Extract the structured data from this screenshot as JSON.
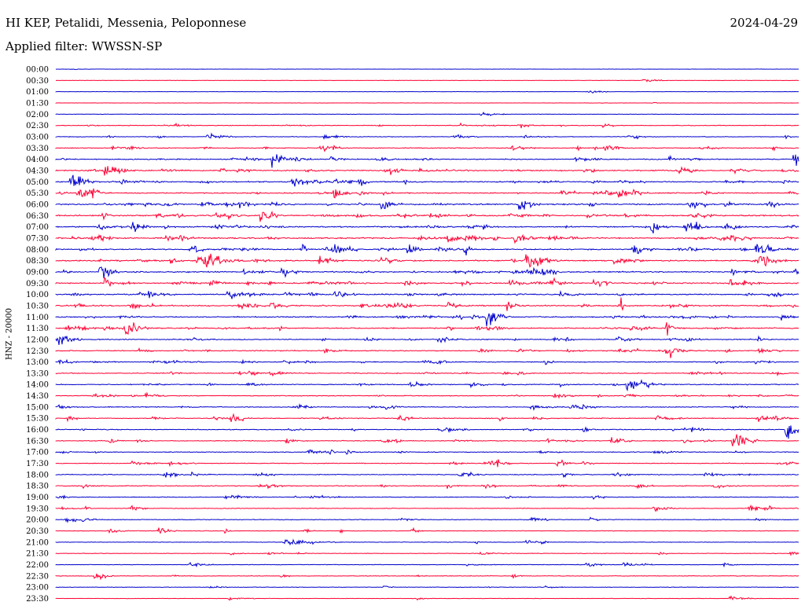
{
  "header": {
    "station": "HI KEP, Petalidi, Messenia, Peloponnese",
    "date": "2024-04-29",
    "filter": "Applied filter: WWSSN-SP"
  },
  "chart_data": {
    "type": "line",
    "ylabel": "HNZ - 20000",
    "row_labels": [
      "00:00",
      "00:30",
      "01:00",
      "01:30",
      "02:00",
      "02:30",
      "03:00",
      "03:30",
      "04:00",
      "04:30",
      "05:00",
      "05:30",
      "06:00",
      "06:30",
      "07:00",
      "07:30",
      "08:00",
      "08:30",
      "09:00",
      "09:30",
      "10:00",
      "10:30",
      "11:00",
      "11:30",
      "12:00",
      "12:30",
      "13:00",
      "13:30",
      "14:00",
      "14:30",
      "15:00",
      "15:30",
      "16:00",
      "16:30",
      "17:00",
      "17:30",
      "18:00",
      "18:30",
      "19:00",
      "19:30",
      "20:00",
      "20:30",
      "21:00",
      "21:30",
      "22:00",
      "22:30",
      "23:00",
      "23:30"
    ],
    "series_colors": [
      "#0000cc",
      "#ff0033"
    ],
    "activity_by_row": [
      0.03,
      0.02,
      0.02,
      0.03,
      0.05,
      0.35,
      0.3,
      0.45,
      0.6,
      0.75,
      0.8,
      0.7,
      0.85,
      0.85,
      0.8,
      0.85,
      0.75,
      0.8,
      0.75,
      0.8,
      0.75,
      0.8,
      0.7,
      0.7,
      0.55,
      0.55,
      0.5,
      0.5,
      0.5,
      0.45,
      0.45,
      0.45,
      0.45,
      0.45,
      0.4,
      0.4,
      0.4,
      0.4,
      0.35,
      0.3,
      0.3,
      0.25,
      0.2,
      0.2,
      0.2,
      0.2,
      0.15,
      0.1
    ]
  }
}
